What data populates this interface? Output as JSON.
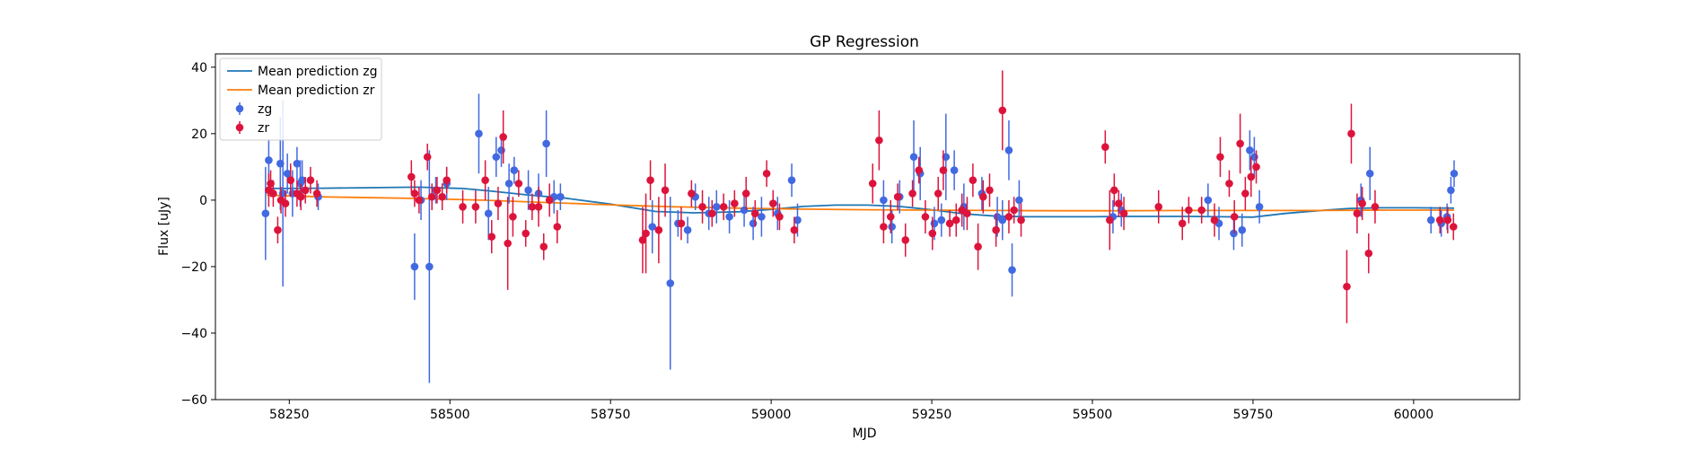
{
  "chart_data": {
    "type": "scatter",
    "title": "GP Regression",
    "xlabel": "MJD",
    "ylabel": "Flux [uJy]",
    "xlim": [
      58135,
      60165
    ],
    "ylim": [
      -60,
      44
    ],
    "xticks": [
      58250,
      58500,
      58750,
      59000,
      59250,
      59500,
      59750,
      60000
    ],
    "yticks": [
      -60,
      -40,
      -20,
      0,
      20,
      40
    ],
    "legend_position": "top-left",
    "grid": false,
    "legend": [
      {
        "label": "Mean prediction zg",
        "kind": "line",
        "color": "#1f77b4"
      },
      {
        "label": "Mean prediction zr",
        "kind": "line",
        "color": "#ff7f0e"
      },
      {
        "label": "zg",
        "kind": "errorbar",
        "color": "#4169e1"
      },
      {
        "label": "zr",
        "kind": "errorbar",
        "color": "#dc143c"
      }
    ],
    "lines": [
      {
        "name": "Mean prediction zg",
        "color": "#1f77b4",
        "x": [
          58215,
          58300,
          58450,
          58520,
          58560,
          58620,
          58680,
          58750,
          58820,
          58880,
          58950,
          59000,
          59050,
          59100,
          59150,
          59200,
          59250,
          59300,
          59350,
          59400,
          59500,
          59550,
          59650,
          59700,
          59750,
          59800,
          59850,
          59900,
          59950,
          60000,
          60063
        ],
        "y": [
          3.5,
          3.6,
          3.9,
          3.5,
          2.8,
          1.6,
          0.6,
          -1.2,
          -3.4,
          -3.8,
          -3.5,
          -2.8,
          -1.9,
          -1.5,
          -1.5,
          -1.9,
          -2.9,
          -4.1,
          -4.8,
          -5.0,
          -5.0,
          -4.9,
          -4.9,
          -5.0,
          -5.1,
          -4.0,
          -3.2,
          -2.5,
          -2.3,
          -2.3,
          -2.4
        ]
      },
      {
        "name": "Mean prediction zr",
        "color": "#ff7f0e",
        "x": [
          58215,
          58300,
          58450,
          58550,
          58650,
          58750,
          58850,
          58950,
          59050,
          59150,
          59250,
          59350,
          59450,
          59550,
          59650,
          59750,
          59850,
          59950,
          60063
        ],
        "y": [
          1.5,
          1.0,
          0.5,
          0.0,
          -0.7,
          -1.4,
          -2.0,
          -2.4,
          -2.7,
          -2.9,
          -3.0,
          -3.1,
          -3.2,
          -3.2,
          -3.1,
          -3.1,
          -3.1,
          -3.0,
          -3.0
        ]
      }
    ],
    "series": [
      {
        "name": "zg",
        "color": "#4169e1",
        "x": [
          58213,
          58218,
          58236,
          58240,
          58247,
          58255,
          58262,
          58267,
          58270,
          58295,
          58445,
          58455,
          58468,
          58478,
          58495,
          58545,
          58560,
          58572,
          58580,
          58592,
          58600,
          58622,
          58638,
          58650,
          58662,
          58672,
          58815,
          58843,
          58855,
          58870,
          58882,
          58903,
          58915,
          58935,
          58958,
          58972,
          58985,
          59010,
          59032,
          59041,
          59175,
          59188,
          59200,
          59222,
          59232,
          59254,
          59265,
          59272,
          59285,
          59300,
          59328,
          59352,
          59360,
          59370,
          59375,
          59386,
          59532,
          59545,
          59680,
          59697,
          59720,
          59733,
          59745,
          59752,
          59760,
          59918,
          59932,
          60027,
          60043,
          60052,
          60058,
          60063
        ],
        "y": [
          -4,
          12,
          11,
          2,
          8,
          2,
          11,
          5,
          6,
          1,
          -20,
          0,
          -20,
          3,
          5,
          20,
          -4,
          13,
          15,
          5,
          9,
          3,
          2,
          17,
          1,
          1,
          -8,
          -25,
          -7,
          -9,
          1,
          -4,
          -2,
          -5,
          -3,
          -7,
          -5,
          -4,
          6,
          -6,
          0,
          -8,
          1,
          13,
          8,
          -7,
          -6,
          13,
          9,
          -2,
          2,
          -5,
          -6,
          15,
          -21,
          0,
          -5,
          -3,
          0,
          -7,
          -10,
          -9,
          15,
          13,
          -2,
          0,
          8,
          -6,
          -7,
          -5,
          3,
          8
        ],
        "err": [
          14,
          6,
          14,
          28,
          6,
          7,
          5,
          7,
          6,
          4,
          10,
          6,
          35,
          4,
          5,
          12,
          8,
          6,
          5,
          6,
          4,
          6,
          6,
          10,
          5,
          4,
          8,
          26,
          4,
          4,
          4,
          5,
          5,
          5,
          5,
          5,
          6,
          5,
          5,
          5,
          6,
          5,
          5,
          11,
          8,
          5,
          5,
          13,
          6,
          7,
          5,
          6,
          6,
          9,
          8,
          6,
          5,
          5,
          5,
          5,
          5,
          5,
          6,
          6,
          5,
          5,
          8,
          4,
          4,
          4,
          4,
          4
        ]
      },
      {
        "name": "zr",
        "color": "#dc143c",
        "x": [
          58218,
          58221,
          58225,
          58232,
          58237,
          58244,
          58252,
          58262,
          58268,
          58275,
          58283,
          58293,
          58440,
          58445,
          58452,
          58465,
          58472,
          58480,
          58488,
          58495,
          58520,
          58540,
          58555,
          58565,
          58575,
          58583,
          58590,
          58598,
          58607,
          58618,
          58628,
          58638,
          58646,
          58655,
          58667,
          58800,
          58805,
          58812,
          58825,
          58835,
          58860,
          58876,
          58893,
          58908,
          58926,
          58943,
          58961,
          58975,
          58993,
          59003,
          59013,
          59036,
          59158,
          59168,
          59175,
          59186,
          59197,
          59209,
          59220,
          59230,
          59240,
          59251,
          59260,
          59268,
          59278,
          59288,
          59297,
          59305,
          59314,
          59322,
          59330,
          59340,
          59350,
          59360,
          59370,
          59378,
          59389,
          59520,
          59527,
          59534,
          59541,
          59549,
          59603,
          59640,
          59650,
          59670,
          59690,
          59699,
          59713,
          59721,
          59730,
          59738,
          59747,
          59755,
          59896,
          59903,
          59912,
          59920,
          59930,
          59940,
          60041,
          60053,
          60062
        ],
        "y": [
          3,
          5,
          2,
          -9,
          0,
          -1,
          6,
          2,
          1,
          3,
          6,
          2,
          7,
          2,
          0,
          13,
          1,
          3,
          1,
          6,
          -2,
          -2,
          6,
          -11,
          -1,
          19,
          -13,
          -5,
          5,
          -10,
          -2,
          -2,
          -14,
          0,
          -8,
          -12,
          -10,
          6,
          -9,
          3,
          -7,
          2,
          -2,
          -4,
          -2,
          -1,
          2,
          -4,
          8,
          -1,
          -5,
          -9,
          5,
          18,
          -8,
          -5,
          1,
          -12,
          2,
          9,
          -5,
          -10,
          2,
          9,
          -7,
          -6,
          -3,
          -4,
          6,
          -14,
          1,
          3,
          -9,
          27,
          -5,
          -3,
          -6,
          16,
          -6,
          3,
          -1,
          -4,
          -2,
          -7,
          -3,
          -3,
          -6,
          13,
          5,
          -5,
          17,
          2,
          7,
          10,
          -26,
          20,
          -4,
          -1,
          -16,
          -2,
          -6,
          -6,
          -8
        ],
        "err": [
          5,
          4,
          4,
          4,
          4,
          4,
          5,
          4,
          4,
          4,
          4,
          4,
          5,
          4,
          4,
          4,
          4,
          4,
          4,
          4,
          5,
          5,
          6,
          5,
          5,
          8,
          14,
          6,
          4,
          4,
          4,
          6,
          4,
          5,
          5,
          10,
          12,
          6,
          10,
          8,
          5,
          4,
          5,
          4,
          4,
          4,
          5,
          4,
          4,
          4,
          4,
          4,
          6,
          9,
          5,
          5,
          4,
          5,
          4,
          4,
          5,
          5,
          5,
          6,
          4,
          5,
          5,
          5,
          5,
          7,
          5,
          5,
          5,
          12,
          5,
          4,
          5,
          5,
          9,
          5,
          4,
          5,
          5,
          5,
          4,
          4,
          5,
          6,
          4,
          5,
          9,
          5,
          6,
          5,
          11,
          9,
          6,
          5,
          6,
          5,
          4,
          4,
          4
        ]
      }
    ]
  }
}
